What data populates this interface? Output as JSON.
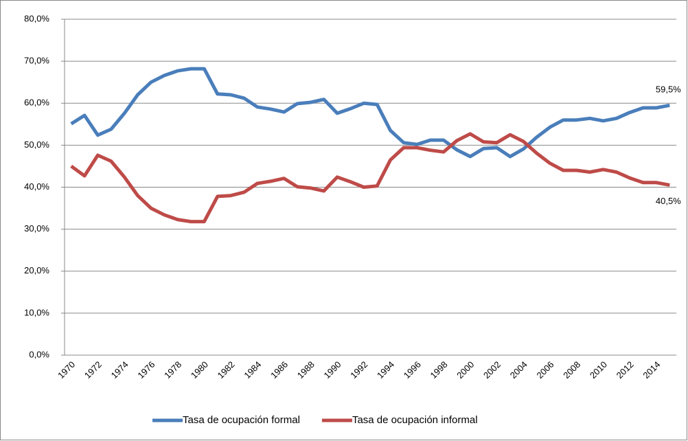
{
  "chart_data": {
    "type": "line",
    "categories": [
      "1970",
      null,
      "1972",
      null,
      "1974",
      null,
      "1976",
      null,
      "1978",
      null,
      "1980",
      null,
      "1982",
      null,
      "1984",
      null,
      "1986",
      null,
      "1988",
      null,
      "1990",
      null,
      "1992",
      null,
      "1994",
      null,
      "1996",
      null,
      "1998",
      null,
      "2000",
      null,
      "2002",
      null,
      "2004",
      null,
      "2006",
      null,
      "2008",
      null,
      "2010",
      null,
      "2012",
      null,
      "2014",
      null
    ],
    "series": [
      {
        "name": "Tasa de ocupación formal",
        "color": "#4a7ebb",
        "values": [
          55.1,
          57.1,
          52.4,
          53.8,
          57.6,
          62.0,
          65.0,
          66.6,
          67.7,
          68.2,
          68.2,
          62.2,
          62.0,
          61.2,
          59.1,
          58.6,
          57.9,
          59.9,
          60.2,
          60.9,
          57.6,
          58.7,
          60.0,
          59.7,
          53.5,
          50.6,
          50.2,
          51.2,
          51.2,
          48.9,
          47.3,
          49.2,
          49.4,
          47.3,
          49.1,
          51.9,
          54.3,
          56.0,
          56.0,
          56.4,
          55.8,
          56.4,
          57.8,
          58.9,
          58.9,
          59.5
        ],
        "value_labels": [
          null,
          null,
          null,
          null,
          null,
          null,
          null,
          null,
          null,
          null,
          null,
          null,
          null,
          null,
          null,
          null,
          null,
          null,
          null,
          null,
          null,
          null,
          null,
          null,
          null,
          null,
          null,
          null,
          null,
          null,
          null,
          null,
          null,
          null,
          null,
          null,
          null,
          null,
          null,
          null,
          null,
          null,
          null,
          null,
          null,
          "59,5%"
        ]
      },
      {
        "name": "Tasa de ocupación informal",
        "color": "#be4b48",
        "values": [
          45.0,
          42.7,
          47.6,
          46.2,
          42.4,
          38.0,
          35.0,
          33.4,
          32.3,
          31.8,
          31.8,
          37.8,
          38.0,
          38.8,
          40.9,
          41.4,
          42.1,
          40.1,
          39.8,
          39.1,
          42.4,
          41.3,
          40.0,
          40.3,
          46.5,
          49.4,
          49.4,
          48.8,
          48.4,
          51.1,
          52.7,
          50.8,
          50.6,
          52.5,
          50.9,
          48.1,
          45.7,
          44.0,
          44.0,
          43.6,
          44.2,
          43.6,
          42.2,
          41.1,
          41.1,
          40.5
        ],
        "value_labels": [
          null,
          null,
          null,
          null,
          null,
          null,
          null,
          null,
          null,
          null,
          null,
          null,
          null,
          null,
          null,
          null,
          null,
          null,
          null,
          null,
          null,
          null,
          null,
          null,
          null,
          null,
          null,
          null,
          null,
          null,
          null,
          null,
          null,
          null,
          null,
          null,
          null,
          null,
          null,
          null,
          null,
          null,
          null,
          null,
          null,
          "40,5%"
        ]
      }
    ],
    "ylim": [
      0,
      80
    ],
    "yticks": [
      {
        "value": 0,
        "label": "0,0%"
      },
      {
        "value": 10,
        "label": "10,0%"
      },
      {
        "value": 20,
        "label": "20,0%"
      },
      {
        "value": 30,
        "label": "30,0%"
      },
      {
        "value": 40,
        "label": "40,0%"
      },
      {
        "value": 50,
        "label": "50,0%"
      },
      {
        "value": 60,
        "label": "60,0%"
      },
      {
        "value": 70,
        "label": "70,0%"
      },
      {
        "value": 80,
        "label": "80,0%"
      }
    ],
    "grid": true,
    "legend": "bottom"
  }
}
